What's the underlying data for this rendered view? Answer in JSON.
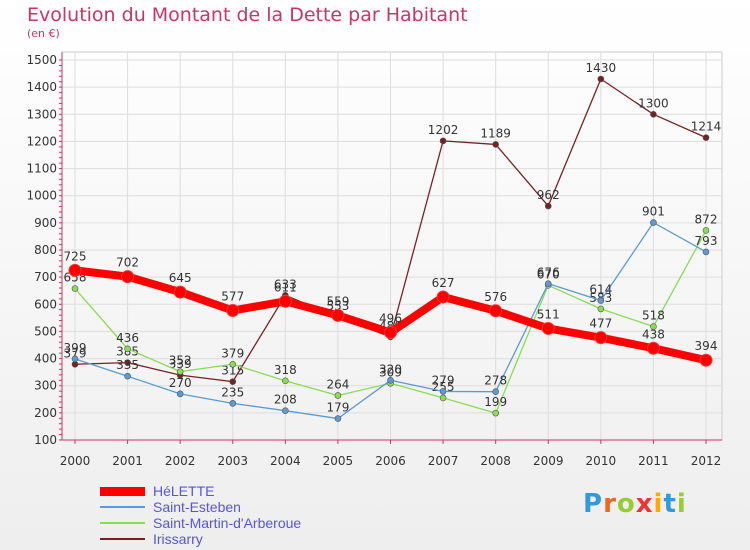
{
  "title": "Evolution du Montant de la Dette par Habitant",
  "subtitle": "(en €)",
  "logo_text": "Proxiti",
  "chart_data": {
    "type": "line",
    "title": "Evolution du Montant de la Dette par Habitant",
    "ylabel": "(en €)",
    "xlabel": "",
    "ylim": [
      100,
      1500
    ],
    "yticks": [
      "100",
      "200",
      "300",
      "400",
      "500",
      "600",
      "700",
      "800",
      "900",
      "1000",
      "1100",
      "1200",
      "1300",
      "1400",
      "1500"
    ],
    "categories": [
      "2000",
      "2001",
      "2002",
      "2003",
      "2004",
      "2005",
      "2006",
      "2007",
      "2008",
      "2009",
      "2010",
      "2011",
      "2012"
    ],
    "grid": true,
    "legend_position": "bottom-left",
    "series": [
      {
        "name": "HéLETTE",
        "color": "#ff0000",
        "values": [
          725,
          702,
          645,
          577,
          611,
          559,
          496,
          627,
          576,
          511,
          477,
          438,
          394
        ]
      },
      {
        "name": "Saint-Esteben",
        "color": "#5b9bd5",
        "values": [
          399,
          335,
          270,
          235,
          208,
          179,
          320,
          279,
          278,
          676,
          614,
          901,
          793
        ]
      },
      {
        "name": "Saint-Martin-d'Arberoue",
        "color": "#88dd55",
        "values": [
          658,
          436,
          352,
          379,
          318,
          264,
          309,
          255,
          199,
          670,
          583,
          518,
          872
        ]
      },
      {
        "name": "Irissarry",
        "color": "#772222",
        "values": [
          379,
          385,
          339,
          315,
          633,
          553,
          480,
          1202,
          1189,
          962,
          1430,
          1300,
          1214
        ]
      }
    ]
  }
}
